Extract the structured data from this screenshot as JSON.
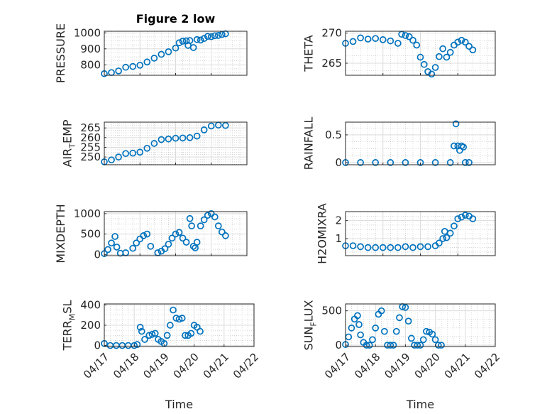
{
  "figure_title": "Figure 2 low",
  "colors": {
    "marker": "#0072BD",
    "axis": "#262626",
    "grid": "#dcdcdc"
  },
  "chart_data": [
    {
      "id": "pressure",
      "type": "scatter",
      "title": "Figure 2 low",
      "xlabel": "",
      "ylabel": "PRESSURE",
      "xlim": [
        0,
        4
      ],
      "ylim": [
        735,
        1010
      ],
      "yticks": [
        800,
        900,
        1000
      ],
      "xticks": [
        0,
        1,
        2,
        3,
        4,
        5
      ],
      "xticklabels": [],
      "grid": true,
      "minor_grid": true,
      "points": [
        [
          0,
          745
        ],
        [
          0.2,
          752
        ],
        [
          0.4,
          762
        ],
        [
          0.6,
          785
        ],
        [
          0.8,
          790
        ],
        [
          1,
          798
        ],
        [
          1.2,
          818
        ],
        [
          1.4,
          842
        ],
        [
          1.6,
          866
        ],
        [
          1.8,
          882
        ],
        [
          2,
          905
        ],
        [
          2.1,
          938
        ],
        [
          2.2,
          948
        ],
        [
          2.3,
          950
        ],
        [
          2.35,
          922
        ],
        [
          2.4,
          952
        ],
        [
          2.5,
          908
        ],
        [
          2.6,
          958
        ],
        [
          2.7,
          955
        ],
        [
          2.8,
          965
        ],
        [
          2.9,
          978
        ],
        [
          3,
          976
        ],
        [
          3.1,
          982
        ],
        [
          3.2,
          984
        ],
        [
          3.3,
          990
        ],
        [
          3.4,
          994
        ]
      ]
    },
    {
      "id": "theta",
      "type": "scatter",
      "title": "",
      "xlabel": "",
      "ylabel": "THETA",
      "xlim": [
        0,
        4
      ],
      "ylim": [
        263,
        270.3
      ],
      "yticks": [
        265,
        270
      ],
      "xticks": [
        0,
        1,
        2,
        3,
        4,
        5
      ],
      "xticklabels": [],
      "grid": true,
      "minor_grid": true,
      "points": [
        [
          0,
          268.3
        ],
        [
          0.2,
          268.6
        ],
        [
          0.4,
          269.2
        ],
        [
          0.6,
          269.0
        ],
        [
          0.8,
          269.1
        ],
        [
          1,
          268.9
        ],
        [
          1.2,
          268.7
        ],
        [
          1.4,
          268.3
        ],
        [
          1.5,
          269.8
        ],
        [
          1.6,
          269.6
        ],
        [
          1.7,
          269.4
        ],
        [
          1.8,
          268.8
        ],
        [
          1.9,
          268.0
        ],
        [
          2,
          266.0
        ],
        [
          2.1,
          264.8
        ],
        [
          2.2,
          263.6
        ],
        [
          2.3,
          263.2
        ],
        [
          2.4,
          264.3
        ],
        [
          2.5,
          266.1
        ],
        [
          2.6,
          267.4
        ],
        [
          2.7,
          266.0
        ],
        [
          2.8,
          266.8
        ],
        [
          2.9,
          268.0
        ],
        [
          3,
          268.5
        ],
        [
          3.1,
          268.8
        ],
        [
          3.2,
          268.5
        ],
        [
          3.3,
          267.8
        ],
        [
          3.4,
          267.2
        ]
      ]
    },
    {
      "id": "air_temp",
      "type": "scatter",
      "title": "",
      "xlabel": "",
      "ylabel": "AIR_TEMP",
      "ylabel_main": "AIR",
      "ylabel_sub": "T",
      "ylabel_rest": "EMP",
      "xlim": [
        0,
        4
      ],
      "ylim": [
        246,
        268
      ],
      "yticks": [
        250,
        255,
        260,
        265
      ],
      "xticks": [
        0,
        1,
        2,
        3,
        4,
        5
      ],
      "xticklabels": [],
      "grid": true,
      "minor_grid": true,
      "points": [
        [
          0,
          247.5
        ],
        [
          0.2,
          248.5
        ],
        [
          0.4,
          250.0
        ],
        [
          0.6,
          251.8
        ],
        [
          0.8,
          252.0
        ],
        [
          1,
          252.5
        ],
        [
          1.2,
          254.5
        ],
        [
          1.4,
          257.0
        ],
        [
          1.6,
          259.0
        ],
        [
          1.8,
          259.3
        ],
        [
          2,
          259.7
        ],
        [
          2.2,
          259.8
        ],
        [
          2.4,
          260.0
        ],
        [
          2.6,
          260.8
        ],
        [
          2.8,
          264.0
        ],
        [
          3,
          266.0
        ],
        [
          3.2,
          266.5
        ],
        [
          3.4,
          266.3
        ]
      ]
    },
    {
      "id": "rainfall",
      "type": "scatter",
      "title": "",
      "xlabel": "",
      "ylabel": "RAINFALL",
      "xlim": [
        0,
        4
      ],
      "ylim": [
        -0.04,
        0.73
      ],
      "yticks": [
        0,
        0.5
      ],
      "xticks": [
        0,
        1,
        2,
        3,
        4,
        5
      ],
      "xticklabels": [],
      "grid": true,
      "minor_grid": true,
      "points": [
        [
          0,
          0
        ],
        [
          0.4,
          0
        ],
        [
          0.8,
          0
        ],
        [
          1.2,
          0
        ],
        [
          1.6,
          0
        ],
        [
          2,
          0
        ],
        [
          2.4,
          0
        ],
        [
          2.8,
          0
        ],
        [
          2.9,
          0.3
        ],
        [
          2.95,
          0.7
        ],
        [
          3.0,
          0.3
        ],
        [
          3.05,
          0.22
        ],
        [
          3.1,
          0.3
        ],
        [
          3.15,
          0.28
        ],
        [
          3.2,
          0
        ],
        [
          3.3,
          0
        ]
      ]
    },
    {
      "id": "mixdepth",
      "type": "scatter",
      "title": "",
      "xlabel": "",
      "ylabel": "MIXDEPTH",
      "xlim": [
        0,
        4
      ],
      "ylim": [
        -30,
        1050
      ],
      "yticks": [
        0,
        500,
        1000
      ],
      "xticks": [
        0,
        1,
        2,
        3,
        4,
        5
      ],
      "xticklabels": [],
      "grid": true,
      "minor_grid": true,
      "points": [
        [
          0,
          20
        ],
        [
          0.1,
          120
        ],
        [
          0.2,
          280
        ],
        [
          0.3,
          440
        ],
        [
          0.35,
          180
        ],
        [
          0.45,
          30
        ],
        [
          0.6,
          40
        ],
        [
          0.8,
          150
        ],
        [
          0.9,
          280
        ],
        [
          1,
          380
        ],
        [
          1.1,
          460
        ],
        [
          1.2,
          500
        ],
        [
          1.3,
          200
        ],
        [
          1.5,
          40
        ],
        [
          1.6,
          80
        ],
        [
          1.7,
          140
        ],
        [
          1.8,
          250
        ],
        [
          1.9,
          400
        ],
        [
          2,
          500
        ],
        [
          2.1,
          540
        ],
        [
          2.2,
          400
        ],
        [
          2.3,
          300
        ],
        [
          2.4,
          880
        ],
        [
          2.45,
          700
        ],
        [
          2.5,
          200
        ],
        [
          2.55,
          160
        ],
        [
          2.6,
          300
        ],
        [
          2.7,
          700
        ],
        [
          2.8,
          850
        ],
        [
          2.9,
          960
        ],
        [
          3,
          1000
        ],
        [
          3.1,
          920
        ],
        [
          3.2,
          700
        ],
        [
          3.3,
          550
        ],
        [
          3.4,
          460
        ]
      ]
    },
    {
      "id": "h2omixra",
      "type": "scatter",
      "title": "",
      "xlabel": "",
      "ylabel": "H2OMIXRA",
      "xlim": [
        0,
        4
      ],
      "ylim": [
        0.05,
        2.5
      ],
      "yticks": [
        0,
        1,
        2
      ],
      "xticks": [
        0,
        1,
        2,
        3,
        4,
        5
      ],
      "xticklabels": [],
      "grid": true,
      "minor_grid": true,
      "points": [
        [
          0,
          0.6
        ],
        [
          0.2,
          0.6
        ],
        [
          0.4,
          0.55
        ],
        [
          0.6,
          0.5
        ],
        [
          0.8,
          0.5
        ],
        [
          1,
          0.5
        ],
        [
          1.2,
          0.5
        ],
        [
          1.4,
          0.5
        ],
        [
          1.6,
          0.55
        ],
        [
          1.8,
          0.5
        ],
        [
          2,
          0.55
        ],
        [
          2.2,
          0.55
        ],
        [
          2.4,
          0.6
        ],
        [
          2.5,
          0.75
        ],
        [
          2.6,
          1.0
        ],
        [
          2.65,
          1.4
        ],
        [
          2.7,
          1.05
        ],
        [
          2.8,
          1.3
        ],
        [
          2.9,
          1.7
        ],
        [
          3,
          2.1
        ],
        [
          3.1,
          2.2
        ],
        [
          3.2,
          2.3
        ],
        [
          3.3,
          2.25
        ],
        [
          3.4,
          2.1
        ]
      ]
    },
    {
      "id": "terr_msl",
      "type": "scatter",
      "title": "",
      "xlabel": "Time",
      "ylabel": "TERR_MSL",
      "ylabel_main": "TERR",
      "ylabel_sub": "M",
      "ylabel_rest": "SL",
      "xlim": [
        0,
        5
      ],
      "ylim": [
        -10,
        410
      ],
      "yticks": [
        0,
        200,
        400
      ],
      "xticks": [
        0,
        1,
        2,
        3,
        4,
        5
      ],
      "xticklabels": [
        "04/17",
        "04/18",
        "04/19",
        "04/20",
        "04/21",
        "04/22"
      ],
      "grid": true,
      "minor_grid": true,
      "points": [
        [
          0,
          20
        ],
        [
          0.2,
          0
        ],
        [
          0.4,
          0
        ],
        [
          0.6,
          0
        ],
        [
          0.8,
          0
        ],
        [
          1,
          0
        ],
        [
          1.1,
          10
        ],
        [
          1.2,
          180
        ],
        [
          1.25,
          140
        ],
        [
          1.35,
          60
        ],
        [
          1.5,
          100
        ],
        [
          1.6,
          110
        ],
        [
          1.7,
          120
        ],
        [
          1.8,
          60
        ],
        [
          1.9,
          40
        ],
        [
          2,
          20
        ],
        [
          2.1,
          100
        ],
        [
          2.2,
          200
        ],
        [
          2.3,
          350
        ],
        [
          2.4,
          270
        ],
        [
          2.5,
          260
        ],
        [
          2.6,
          270
        ],
        [
          2.7,
          100
        ],
        [
          2.8,
          100
        ],
        [
          2.9,
          120
        ],
        [
          3,
          200
        ],
        [
          3.1,
          180
        ],
        [
          3.2,
          140
        ]
      ]
    },
    {
      "id": "sun_flux",
      "type": "scatter",
      "title": "",
      "xlabel": "Time",
      "ylabel": "SUN_FLUX",
      "ylabel_main": "SUN",
      "ylabel_sub": "F",
      "ylabel_rest": "LUX",
      "xlim": [
        0,
        5
      ],
      "ylim": [
        -20,
        600
      ],
      "yticks": [
        0,
        500
      ],
      "xticks": [
        0,
        1,
        2,
        3,
        4,
        5
      ],
      "xticklabels": [
        "04/17",
        "04/18",
        "04/19",
        "04/20",
        "04/21",
        "04/22"
      ],
      "grid": true,
      "minor_grid": true,
      "points": [
        [
          0,
          10
        ],
        [
          0.1,
          120
        ],
        [
          0.2,
          250
        ],
        [
          0.3,
          380
        ],
        [
          0.4,
          430
        ],
        [
          0.45,
          300
        ],
        [
          0.5,
          150
        ],
        [
          0.6,
          40
        ],
        [
          0.7,
          0
        ],
        [
          0.8,
          0
        ],
        [
          0.9,
          80
        ],
        [
          1,
          250
        ],
        [
          1.1,
          450
        ],
        [
          1.2,
          500
        ],
        [
          1.3,
          200
        ],
        [
          1.4,
          0
        ],
        [
          1.5,
          0
        ],
        [
          1.6,
          0
        ],
        [
          1.7,
          200
        ],
        [
          1.8,
          400
        ],
        [
          1.9,
          560
        ],
        [
          2,
          550
        ],
        [
          2.1,
          350
        ],
        [
          2.2,
          100
        ],
        [
          2.3,
          0
        ],
        [
          2.4,
          0
        ],
        [
          2.5,
          0
        ],
        [
          2.6,
          80
        ],
        [
          2.7,
          200
        ],
        [
          2.8,
          190
        ],
        [
          2.9,
          160
        ],
        [
          3,
          80
        ],
        [
          3.1,
          0
        ],
        [
          3.2,
          0
        ]
      ]
    }
  ]
}
